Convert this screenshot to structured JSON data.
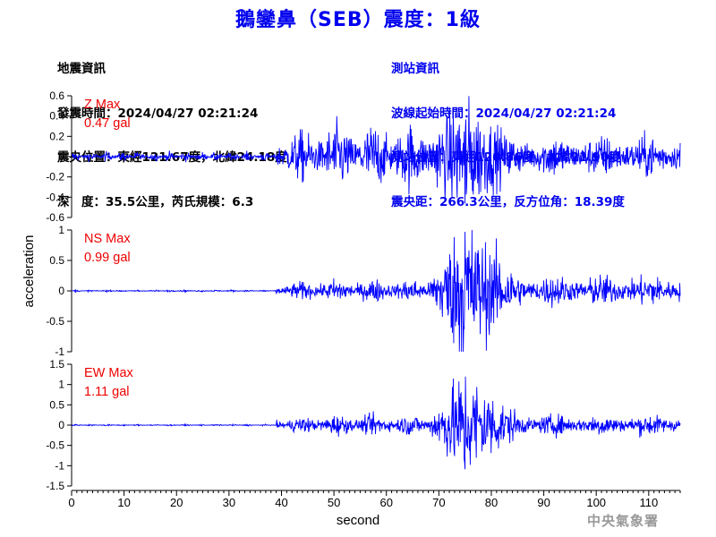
{
  "title": "鵝鑾鼻（SEB）震度：1級",
  "event_info": {
    "heading": "地震資訊",
    "origin_time": "發震時間：2024/04/27 02:21:24",
    "epicenter": "震央位置：東經121.67度，北緯24.18度",
    "depth_magnitude": "深　度：35.5公里，芮氏規模：6.3"
  },
  "station_info": {
    "heading": "測站資訊",
    "wave_start": "波線起始時間：2024/04/27 02:21:24",
    "location": "測站位置：東經120.86度，北緯21.90度",
    "distance_azimuth": "震央距：266.3公里，反方位角：18.39度"
  },
  "watermark": "中央氣象署",
  "colors": {
    "title": "#0000ee",
    "trace": "#0000ff",
    "max_label": "#ee0000",
    "station_info": "#0000ee"
  },
  "chart_data": {
    "type": "line",
    "xlabel": "second",
    "ylabel": "acceleration",
    "xlim": [
      0,
      116
    ],
    "x_ticks": [
      0,
      10,
      20,
      30,
      40,
      50,
      60,
      70,
      80,
      90,
      100,
      110
    ],
    "panels": [
      {
        "name": "Z",
        "max_label": "Z Max",
        "max_value": "0.47 gal",
        "ylim": [
          -0.6,
          0.6
        ],
        "y_ticks": [
          0.6,
          0.4,
          0.2,
          0,
          -0.2,
          -0.4,
          -0.6
        ],
        "y_tick_labels": [
          "0.6",
          "0.4",
          "0.2",
          "0",
          "-0.2",
          "-0.4",
          "-0.6"
        ],
        "peak": 0.47,
        "noise": 0.015,
        "p_arrival": 39,
        "p_level": 0.1,
        "s_peak_time": 75,
        "coda_level": 0.08
      },
      {
        "name": "NS",
        "max_label": "NS Max",
        "max_value": "0.99 gal",
        "ylim": [
          -1,
          1
        ],
        "y_ticks": [
          1,
          0.5,
          0,
          -0.5,
          -1
        ],
        "y_tick_labels": [
          "1",
          "0.5",
          "0",
          "-0.5",
          "-1"
        ],
        "peak": 0.99,
        "noise": 0.005,
        "p_arrival": 39,
        "p_level": 0.06,
        "s_peak_time": 75,
        "coda_level": 0.1
      },
      {
        "name": "EW",
        "max_label": "EW Max",
        "max_value": "1.11 gal",
        "ylim": [
          -1.5,
          1.5
        ],
        "y_ticks": [
          1.5,
          1,
          0.5,
          0,
          -0.5,
          -1,
          -1.5
        ],
        "y_tick_labels": [
          "1.5",
          "1",
          "0.5",
          "0",
          "-0.5",
          "-1",
          "-1.5"
        ],
        "peak": 1.11,
        "noise": 0.006,
        "p_arrival": 39,
        "p_level": 0.08,
        "s_peak_time": 75,
        "coda_level": 0.1
      }
    ]
  }
}
